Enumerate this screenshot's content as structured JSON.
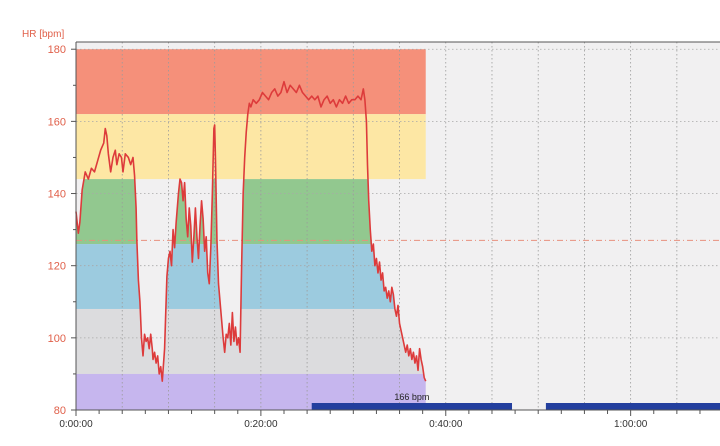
{
  "chart_data": {
    "type": "line",
    "title": "",
    "ylabel": "HR [bpm]",
    "xlabel": "",
    "xlim": [
      0,
      4180
    ],
    "ylim": [
      80,
      182
    ],
    "x_ticks": [
      {
        "value": 0,
        "label": "0:00:00"
      },
      {
        "value": 1200,
        "label": "0:20:00"
      },
      {
        "value": 2400,
        "label": "0:40:00"
      },
      {
        "value": 3600,
        "label": "1:00:00"
      }
    ],
    "y_ticks": [
      {
        "value": 80,
        "label": "80"
      },
      {
        "value": 100,
        "label": "100"
      },
      {
        "value": 120,
        "label": "120"
      },
      {
        "value": 140,
        "label": "140"
      },
      {
        "value": 160,
        "label": "160"
      },
      {
        "value": 180,
        "label": "180"
      }
    ],
    "zones": [
      {
        "name": "zone-5",
        "from": 162,
        "to": 180,
        "color": "#f5907a"
      },
      {
        "name": "zone-4",
        "from": 144,
        "to": 162,
        "color": "#fde7a4"
      },
      {
        "name": "zone-3",
        "from": 126,
        "to": 144,
        "color": "#92c88f"
      },
      {
        "name": "zone-2",
        "from": 108,
        "to": 126,
        "color": "#9ccbdf"
      },
      {
        "name": "zone-1",
        "from": 90,
        "to": 108,
        "color": "#dcdcde"
      },
      {
        "name": "zone-0",
        "from": 80,
        "to": 90,
        "color": "#c6b6ee"
      }
    ],
    "average_line": 127,
    "intervals": [
      {
        "start": 1530,
        "end": 2830,
        "label": "166 bpm"
      },
      {
        "start": 3050,
        "end": 4180,
        "label": ""
      }
    ],
    "series": [
      {
        "color": "#dd3b3b",
        "points": [
          [
            0,
            135
          ],
          [
            15,
            129
          ],
          [
            25,
            132
          ],
          [
            40,
            141
          ],
          [
            60,
            146
          ],
          [
            80,
            144
          ],
          [
            100,
            147
          ],
          [
            120,
            146
          ],
          [
            140,
            149
          ],
          [
            160,
            152
          ],
          [
            180,
            154
          ],
          [
            190,
            158
          ],
          [
            200,
            156
          ],
          [
            210,
            151
          ],
          [
            225,
            146
          ],
          [
            240,
            150
          ],
          [
            255,
            152
          ],
          [
            265,
            148
          ],
          [
            280,
            151
          ],
          [
            295,
            150
          ],
          [
            305,
            146
          ],
          [
            320,
            151
          ],
          [
            340,
            150
          ],
          [
            355,
            148
          ],
          [
            370,
            150
          ],
          [
            380,
            145
          ],
          [
            390,
            136
          ],
          [
            395,
            127
          ],
          [
            405,
            116
          ],
          [
            415,
            110
          ],
          [
            425,
            100
          ],
          [
            435,
            95
          ],
          [
            445,
            101
          ],
          [
            455,
            99
          ],
          [
            465,
            100
          ],
          [
            475,
            97
          ],
          [
            485,
            101
          ],
          [
            495,
            97
          ],
          [
            500,
            94
          ],
          [
            510,
            96
          ],
          [
            520,
            93
          ],
          [
            530,
            95
          ],
          [
            540,
            90
          ],
          [
            550,
            92
          ],
          [
            560,
            88
          ],
          [
            575,
            97
          ],
          [
            590,
            117
          ],
          [
            600,
            122
          ],
          [
            610,
            124
          ],
          [
            620,
            120
          ],
          [
            630,
            130
          ],
          [
            640,
            125
          ],
          [
            650,
            132
          ],
          [
            665,
            140
          ],
          [
            675,
            144
          ],
          [
            685,
            143
          ],
          [
            695,
            138
          ],
          [
            705,
            143
          ],
          [
            715,
            133
          ],
          [
            725,
            128
          ],
          [
            735,
            136
          ],
          [
            745,
            131
          ],
          [
            755,
            121
          ],
          [
            765,
            128
          ],
          [
            775,
            136
          ],
          [
            785,
            128
          ],
          [
            795,
            122
          ],
          [
            805,
            131
          ],
          [
            815,
            138
          ],
          [
            825,
            133
          ],
          [
            835,
            124
          ],
          [
            845,
            128
          ],
          [
            855,
            118
          ],
          [
            865,
            115
          ],
          [
            875,
            125
          ],
          [
            885,
            140
          ],
          [
            895,
            158
          ],
          [
            900,
            159
          ],
          [
            905,
            150
          ],
          [
            915,
            127
          ],
          [
            925,
            115
          ],
          [
            935,
            110
          ],
          [
            945,
            105
          ],
          [
            955,
            100
          ],
          [
            965,
            96
          ],
          [
            975,
            101
          ],
          [
            985,
            100
          ],
          [
            995,
            104
          ],
          [
            1005,
            98
          ],
          [
            1015,
            107
          ],
          [
            1025,
            99
          ],
          [
            1035,
            103
          ],
          [
            1045,
            98
          ],
          [
            1055,
            100
          ],
          [
            1065,
            96
          ],
          [
            1075,
            120
          ],
          [
            1085,
            140
          ],
          [
            1095,
            150
          ],
          [
            1105,
            157
          ],
          [
            1115,
            162
          ],
          [
            1125,
            165
          ],
          [
            1135,
            164
          ],
          [
            1150,
            166
          ],
          [
            1170,
            165
          ],
          [
            1190,
            166
          ],
          [
            1210,
            168
          ],
          [
            1230,
            167
          ],
          [
            1250,
            166
          ],
          [
            1270,
            168
          ],
          [
            1290,
            169
          ],
          [
            1310,
            167
          ],
          [
            1330,
            168
          ],
          [
            1350,
            171
          ],
          [
            1370,
            168
          ],
          [
            1390,
            170
          ],
          [
            1410,
            169
          ],
          [
            1430,
            168
          ],
          [
            1450,
            170
          ],
          [
            1470,
            168
          ],
          [
            1490,
            167
          ],
          [
            1510,
            166
          ],
          [
            1530,
            167
          ],
          [
            1550,
            166
          ],
          [
            1570,
            167
          ],
          [
            1590,
            164
          ],
          [
            1610,
            166
          ],
          [
            1630,
            167
          ],
          [
            1650,
            165
          ],
          [
            1670,
            166
          ],
          [
            1690,
            164
          ],
          [
            1710,
            166
          ],
          [
            1730,
            165
          ],
          [
            1750,
            167
          ],
          [
            1770,
            165
          ],
          [
            1790,
            166
          ],
          [
            1810,
            166
          ],
          [
            1830,
            167
          ],
          [
            1850,
            166
          ],
          [
            1865,
            169
          ],
          [
            1875,
            166
          ],
          [
            1885,
            160
          ],
          [
            1892,
            148
          ],
          [
            1900,
            138
          ],
          [
            1910,
            130
          ],
          [
            1920,
            124
          ],
          [
            1930,
            126
          ],
          [
            1940,
            120
          ],
          [
            1950,
            122
          ],
          [
            1960,
            118
          ],
          [
            1970,
            121
          ],
          [
            1980,
            116
          ],
          [
            1990,
            118
          ],
          [
            2000,
            113
          ],
          [
            2010,
            114
          ],
          [
            2020,
            111
          ],
          [
            2030,
            113
          ],
          [
            2040,
            110
          ],
          [
            2050,
            114
          ],
          [
            2060,
            112
          ],
          [
            2070,
            108
          ],
          [
            2080,
            106
          ],
          [
            2090,
            109
          ],
          [
            2100,
            104
          ],
          [
            2110,
            102
          ],
          [
            2120,
            100
          ],
          [
            2130,
            98
          ],
          [
            2140,
            96
          ],
          [
            2150,
            98
          ],
          [
            2160,
            95
          ],
          [
            2170,
            97
          ],
          [
            2180,
            94
          ],
          [
            2190,
            96
          ],
          [
            2200,
            93
          ],
          [
            2210,
            95
          ],
          [
            2220,
            91
          ],
          [
            2230,
            97
          ],
          [
            2240,
            94
          ],
          [
            2250,
            92
          ],
          [
            2260,
            89
          ],
          [
            2270,
            88
          ]
        ]
      }
    ]
  }
}
